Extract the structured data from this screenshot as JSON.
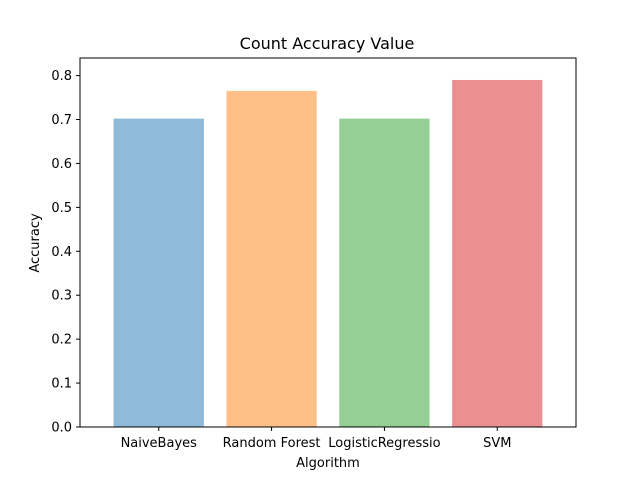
{
  "chart_data": {
    "type": "bar",
    "title": "Count Accuracy Value",
    "xlabel": "Algorithm",
    "ylabel": "Accuracy",
    "categories": [
      "NaiveBayes",
      "Random Forest",
      "LogisticRegressio",
      "SVM"
    ],
    "values": [
      0.702,
      0.765,
      0.702,
      0.79
    ],
    "colors": [
      "#8fbad9",
      "#ffbf86",
      "#96cf95",
      "#ea9092"
    ],
    "ylim": [
      0,
      0.84
    ],
    "yticks": [
      "0.0",
      "0.1",
      "0.2",
      "0.3",
      "0.4",
      "0.5",
      "0.6",
      "0.7",
      "0.8"
    ],
    "grid": false,
    "legend": "none"
  }
}
